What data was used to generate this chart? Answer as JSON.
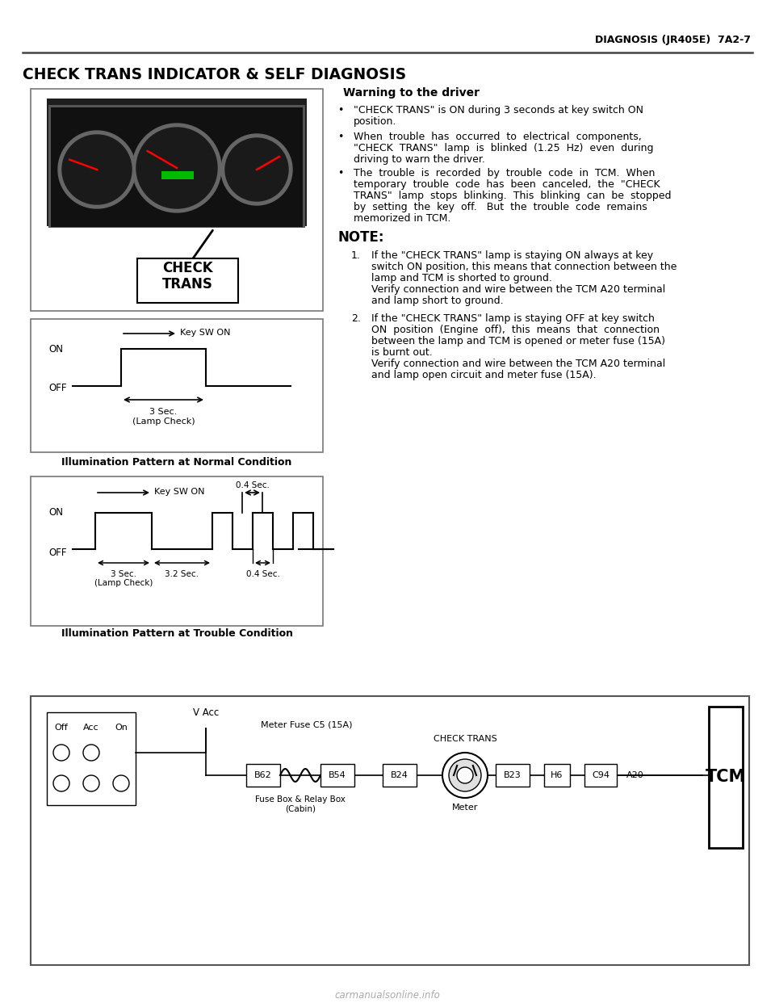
{
  "page_header_right": "DIAGNOSIS (JR405E)  7A2-7",
  "section_title": "CHECK TRANS INDICATOR & SELF DIAGNOSIS",
  "warning_title": "Warning to the driver",
  "bullet1_line1": "\"CHECK TRANS\" is ON during 3 seconds at key switch ON",
  "bullet1_line2": "position.",
  "bullet2_line1": "When  trouble  has  occurred  to  electrical  components,",
  "bullet2_line2": "\"CHECK  TRANS\"  lamp  is  blinked  (1.25  Hz)  even  during",
  "bullet2_line3": "driving to warn the driver.",
  "bullet3_line1": "The  trouble  is  recorded  by  trouble  code  in  TCM.  When",
  "bullet3_line2": "temporary  trouble  code  has  been  canceled,  the  \"CHECK",
  "bullet3_line3": "TRANS\"  lamp  stops  blinking.  This  blinking  can  be  stopped",
  "bullet3_line4": "by  setting  the  key  off.   But  the  trouble  code  remains",
  "bullet3_line5": "memorized in TCM.",
  "note_title": "NOTE:",
  "note1_num": "1.",
  "note1_lines": [
    "If the \"CHECK TRANS\" lamp is staying ON always at key",
    "switch ON position, this means that connection between the",
    "lamp and TCM is shorted to ground.",
    "Verify connection and wire between the TCM A20 terminal",
    "and lamp short to ground."
  ],
  "note2_num": "2.",
  "note2_lines": [
    "If the \"CHECK TRANS\" lamp is staying OFF at key switch",
    "ON  position  (Engine  off),  this  means  that  connection",
    "between the lamp and TCM is opened or meter fuse (15A)",
    "is burnt out.",
    "Verify connection and wire between the TCM A20 terminal",
    "and lamp open circuit and meter fuse (15A)."
  ],
  "caption1": "Illumination Pattern at Normal Condition",
  "caption2": "Illumination Pattern at Trouble Condition",
  "check_trans_label": "CHECK\nTRANS",
  "watermark": "carmanualsonline.info",
  "bg_color": "#ffffff",
  "text_color": "#000000",
  "header_line_color": "#444444",
  "box_border": "#888888"
}
